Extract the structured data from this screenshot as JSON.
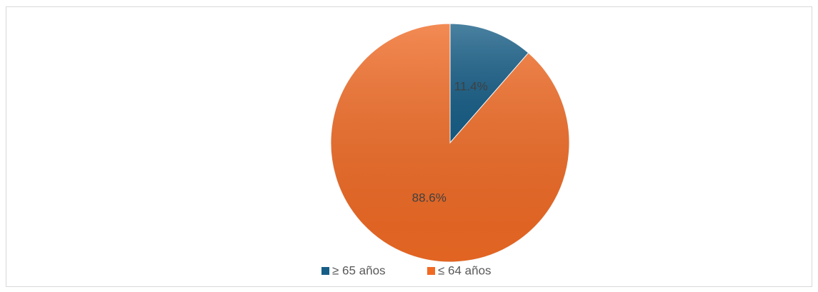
{
  "chart_data": {
    "type": "pie",
    "categories": [
      "≥ 65 años",
      "≤ 64 años"
    ],
    "values": [
      11.4,
      88.6
    ],
    "value_labels": [
      "11.4%",
      "88.6%"
    ],
    "colors": [
      "#175e87",
      "#f06a24"
    ],
    "legend": "bottom"
  }
}
